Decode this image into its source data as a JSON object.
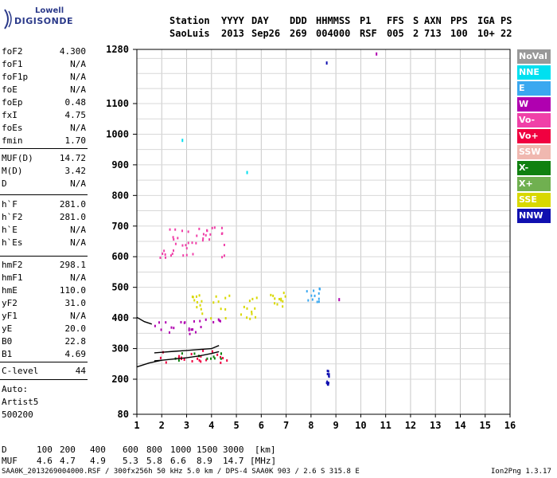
{
  "logo": {
    "line1": "Lowell",
    "line2": "DIGISONDE"
  },
  "header": {
    "labels": [
      "Station",
      "YYYY",
      "DAY",
      "DDD",
      "HHMMSS",
      "P1",
      "FFS",
      "S",
      "AXN",
      "PPS",
      "IGA",
      "PS"
    ],
    "values": [
      "SaoLuis",
      "2013",
      "Sep26",
      "269",
      "004000",
      "RSF",
      "005",
      "2",
      "713",
      "100",
      "10+",
      "22"
    ]
  },
  "scaled_params": [
    {
      "name": "foF2",
      "value": "4.300"
    },
    {
      "name": "foF1",
      "value": "N/A"
    },
    {
      "name": "foF1p",
      "value": "N/A"
    },
    {
      "name": "foE",
      "value": "N/A"
    },
    {
      "name": "foEp",
      "value": "0.48"
    },
    {
      "name": "fxI",
      "value": "4.75"
    },
    {
      "name": "foEs",
      "value": "N/A"
    },
    {
      "name": "fmin",
      "value": "1.70"
    },
    {
      "name": "MUF(D)",
      "value": "14.72"
    },
    {
      "name": "M(D)",
      "value": "3.42"
    },
    {
      "name": "D",
      "value": "N/A"
    },
    {
      "name": "h`F",
      "value": "281.0"
    },
    {
      "name": "h`F2",
      "value": "281.0"
    },
    {
      "name": "h`E",
      "value": "N/A"
    },
    {
      "name": "h`Es",
      "value": "N/A"
    },
    {
      "name": "hmF2",
      "value": "298.1"
    },
    {
      "name": "hmF1",
      "value": "N/A"
    },
    {
      "name": "hmE",
      "value": "110.0"
    },
    {
      "name": "yF2",
      "value": "31.0"
    },
    {
      "name": "yF1",
      "value": "N/A"
    },
    {
      "name": "yE",
      "value": "20.0"
    },
    {
      "name": "B0",
      "value": "22.8"
    },
    {
      "name": "B1",
      "value": "4.69"
    },
    {
      "name": "C-level",
      "value": "44"
    }
  ],
  "autoscale": {
    "line1": "Auto:",
    "line2": "Artist5",
    "line3": "500200"
  },
  "legend": [
    {
      "label": "NoVal",
      "color": "#999999"
    },
    {
      "label": "NNE",
      "color": "#00e0f0"
    },
    {
      "label": "E",
      "color": "#3aa8f0"
    },
    {
      "label": "W",
      "color": "#b000b0"
    },
    {
      "label": "Vo-",
      "color": "#f040a8"
    },
    {
      "label": "Vo+",
      "color": "#f00040"
    },
    {
      "label": "SSW",
      "color": "#f0b8b0"
    },
    {
      "label": "X-",
      "color": "#108010"
    },
    {
      "label": "X+",
      "color": "#70b050"
    },
    {
      "label": "SSE",
      "color": "#d8d800"
    },
    {
      "label": "NNW",
      "color": "#1010b0"
    }
  ],
  "muf_table": {
    "d_label": "D",
    "d_values": [
      "100",
      "200",
      "400",
      "600",
      "800",
      "1000",
      "1500",
      "3000"
    ],
    "d_unit": "[km]",
    "muf_label": "MUF",
    "muf_values": [
      "4.6",
      "4.7",
      "4.9",
      "5.3",
      "5.8",
      "6.6",
      "8.9",
      "14.7"
    ],
    "muf_unit": "[MHz]"
  },
  "footer": {
    "left": "SAA0K_2013269004000.RSF / 300fx256h 50 kHz 5.0 km / DPS-4 SAA0K 903 / 2.6 S 315.8 E",
    "right": "Ion2Png 1.3.17"
  },
  "chart_data": {
    "type": "scatter",
    "x": {
      "min": 1,
      "max": 16,
      "ticks": [
        1,
        2,
        3,
        4,
        5,
        6,
        7,
        8,
        9,
        10,
        11,
        12,
        13,
        14,
        15,
        16
      ]
    },
    "y": {
      "min": 80,
      "max": 1280,
      "ticks": [
        80,
        200,
        300,
        400,
        500,
        600,
        700,
        800,
        900,
        1000,
        1100,
        1280
      ]
    },
    "grid": true,
    "traces": [
      {
        "name": "F2 O-trace",
        "points": [
          [
            1.7,
            286
          ],
          [
            2.0,
            288
          ],
          [
            2.5,
            291
          ],
          [
            3.0,
            294
          ],
          [
            3.5,
            297
          ],
          [
            4.0,
            300
          ],
          [
            4.3,
            310
          ]
        ]
      },
      {
        "name": "F2 X-trace",
        "points": [
          [
            1.7,
            260
          ],
          [
            2.0,
            262
          ],
          [
            2.5,
            266
          ],
          [
            3.0,
            270
          ],
          [
            3.5,
            276
          ],
          [
            4.0,
            284
          ],
          [
            4.3,
            290
          ]
        ]
      },
      {
        "name": "E-layer lower",
        "points": [
          [
            1.0,
            240
          ],
          [
            1.5,
            253
          ],
          [
            2.0,
            262
          ]
        ]
      },
      {
        "name": "E-layer upper",
        "points": [
          [
            1.0,
            402
          ],
          [
            1.3,
            388
          ],
          [
            1.6,
            380
          ]
        ]
      }
    ],
    "echo_clusters": [
      {
        "source": "W",
        "f": [
          1.7,
          3.7
        ],
        "h": [
          350,
          380
        ]
      },
      {
        "source": "W",
        "f": [
          1.7,
          4.5
        ],
        "h": [
          385,
          400
        ]
      },
      {
        "source": "Vo+",
        "f": [
          1.7,
          4.6
        ],
        "h": [
          255,
          300
        ]
      },
      {
        "source": "X-",
        "f": [
          2.5,
          4.6
        ],
        "h": [
          265,
          290
        ]
      },
      {
        "source": "SSE",
        "f": [
          3.2,
          4.7
        ],
        "h": [
          400,
          480
        ]
      },
      {
        "source": "SSE",
        "f": [
          5.0,
          5.8
        ],
        "h": [
          390,
          470
        ]
      },
      {
        "source": "SSE",
        "f": [
          6.3,
          7.0
        ],
        "h": [
          440,
          490
        ]
      },
      {
        "source": "Vo-",
        "f": [
          1.9,
          4.5
        ],
        "h": [
          600,
          700
        ]
      },
      {
        "source": "E",
        "f": [
          7.5,
          8.4
        ],
        "h": [
          450,
          510
        ]
      },
      {
        "source": "NNW",
        "f": [
          8.6,
          8.7
        ],
        "h": [
          185,
          235
        ]
      }
    ],
    "isolated_points": [
      {
        "source": "NNW",
        "f": 8.6,
        "h": 1240
      },
      {
        "source": "W",
        "f": 10.6,
        "h": 1270
      },
      {
        "source": "NNE",
        "f": 2.8,
        "h": 985
      },
      {
        "source": "NNE",
        "f": 5.4,
        "h": 880
      },
      {
        "source": "W",
        "f": 9.1,
        "h": 465
      }
    ]
  }
}
